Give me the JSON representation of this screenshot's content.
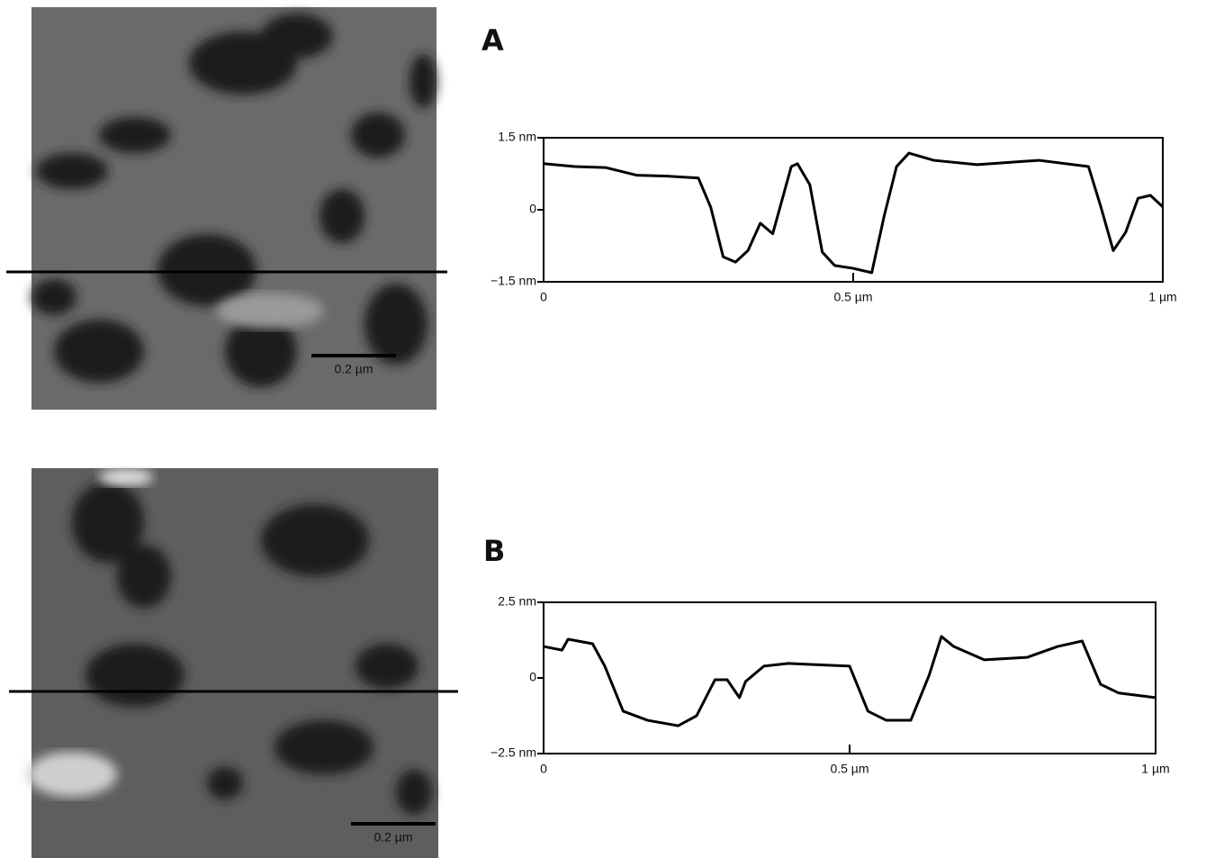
{
  "chart_data": [
    {
      "type": "line",
      "panel_label": "A",
      "scale_bar": "0.2 µm",
      "x": [
        0,
        0.05,
        0.1,
        0.15,
        0.2,
        0.25,
        0.27,
        0.29,
        0.31,
        0.33,
        0.35,
        0.37,
        0.4,
        0.41,
        0.43,
        0.45,
        0.47,
        0.5,
        0.53,
        0.55,
        0.57,
        0.59,
        0.63,
        0.7,
        0.8,
        0.88,
        0.9,
        0.92,
        0.94,
        0.96,
        0.98,
        1.0
      ],
      "series": [
        {
          "color": "#000000",
          "values": [
            0.96,
            0.9,
            0.88,
            0.72,
            0.7,
            0.66,
            0.05,
            -0.98,
            -1.09,
            -0.85,
            -0.28,
            -0.5,
            0.9,
            0.96,
            0.52,
            -0.88,
            -1.16,
            -1.22,
            -1.31,
            -0.13,
            0.9,
            1.18,
            1.03,
            0.94,
            1.03,
            0.9,
            0.06,
            -0.85,
            -0.47,
            0.24,
            0.3,
            0.06
          ]
        }
      ],
      "xlim": [
        0,
        1
      ],
      "ylim": [
        -1.5,
        1.5
      ],
      "xticks": [
        0,
        {
          "value": 0.5,
          "label": "0.5 µm"
        },
        {
          "value": 1,
          "label": "1 µm"
        }
      ],
      "yticks": [
        {
          "value": 1.5,
          "label": "1.5 nm"
        },
        0,
        {
          "value": -1.5,
          "label": "−1.5 nm"
        }
      ]
    },
    {
      "type": "line",
      "panel_label": "B",
      "scale_bar": "0.2 µm",
      "x": [
        0,
        0.03,
        0.04,
        0.08,
        0.1,
        0.13,
        0.17,
        0.22,
        0.25,
        0.28,
        0.3,
        0.32,
        0.33,
        0.36,
        0.4,
        0.5,
        0.53,
        0.56,
        0.6,
        0.63,
        0.65,
        0.67,
        0.72,
        0.79,
        0.84,
        0.88,
        0.91,
        0.94,
        1.0
      ],
      "series": [
        {
          "color": "#000000",
          "values": [
            1.04,
            0.92,
            1.28,
            1.13,
            0.39,
            -1.1,
            -1.4,
            -1.58,
            -1.25,
            -0.06,
            -0.06,
            -0.65,
            -0.12,
            0.39,
            0.48,
            0.39,
            -1.1,
            -1.4,
            -1.4,
            0.09,
            1.37,
            1.04,
            0.6,
            0.68,
            1.04,
            1.22,
            -0.21,
            -0.5,
            -0.65
          ]
        }
      ],
      "xlim": [
        0,
        1
      ],
      "ylim": [
        -2.5,
        2.5
      ],
      "xticks": [
        0,
        {
          "value": 0.5,
          "label": "0.5 µm"
        },
        {
          "value": 1,
          "label": "1 µm"
        }
      ],
      "yticks": [
        {
          "value": 2.5,
          "label": "2.5 nm"
        },
        0,
        {
          "value": -2.5,
          "label": "−2.5 nm"
        }
      ]
    }
  ]
}
